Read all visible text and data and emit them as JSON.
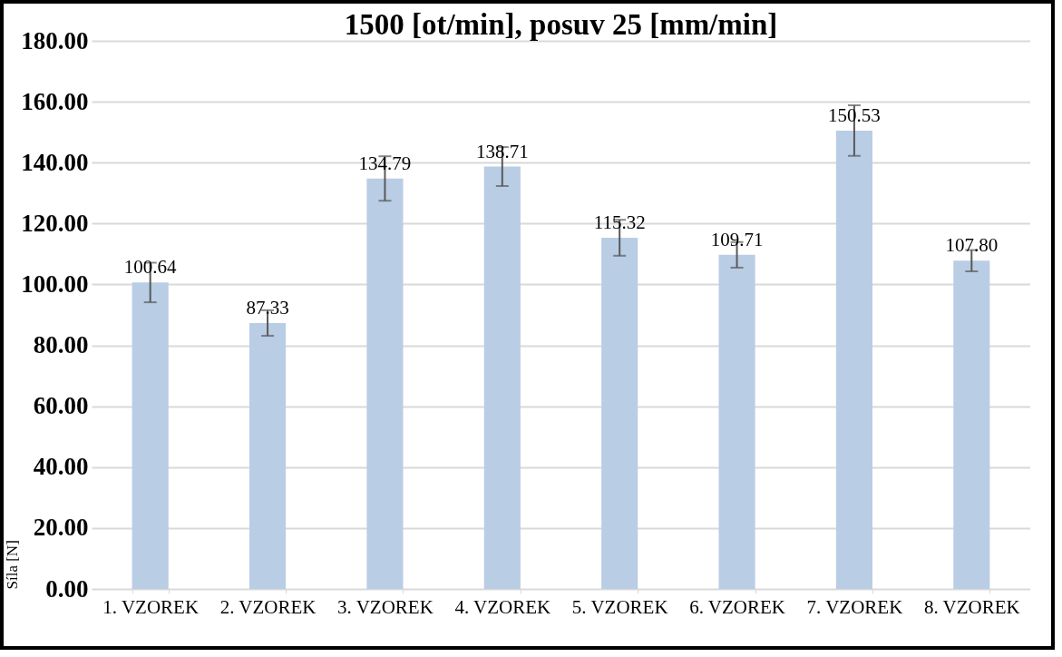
{
  "chart_data": {
    "type": "bar",
    "title": "1500 [ot/min], posuv 25 [mm/min]",
    "ylabel": "Síla [N]",
    "categories": [
      "1. VZOREK",
      "2. VZOREK",
      "3. VZOREK",
      "4. VZOREK",
      "5. VZOREK",
      "6. VZOREK",
      "7. VZOREK",
      "8. VZOREK"
    ],
    "values": [
      100.64,
      87.33,
      134.79,
      138.71,
      115.32,
      109.71,
      150.53,
      107.8
    ],
    "value_labels": [
      "100.64",
      "87.33",
      "134.79",
      "138.71",
      "115.32",
      "109.71",
      "150.53",
      "107.80"
    ],
    "errors": [
      6.5,
      4.2,
      7.3,
      6.4,
      5.9,
      4.2,
      8.3,
      3.5
    ],
    "color": "#b9cde5",
    "ylim": [
      0,
      180
    ],
    "yticks": [
      {
        "value": 0,
        "label": "0.00"
      },
      {
        "value": 20,
        "label": "20.00"
      },
      {
        "value": 40,
        "label": "40.00"
      },
      {
        "value": 60,
        "label": "60.00"
      },
      {
        "value": 80,
        "label": "80.00"
      },
      {
        "value": 100,
        "label": "100.00"
      },
      {
        "value": 120,
        "label": "120.00"
      },
      {
        "value": 140,
        "label": "140.00"
      },
      {
        "value": 160,
        "label": "160.00"
      },
      {
        "value": 180,
        "label": "180.00"
      }
    ],
    "grid": "y"
  }
}
